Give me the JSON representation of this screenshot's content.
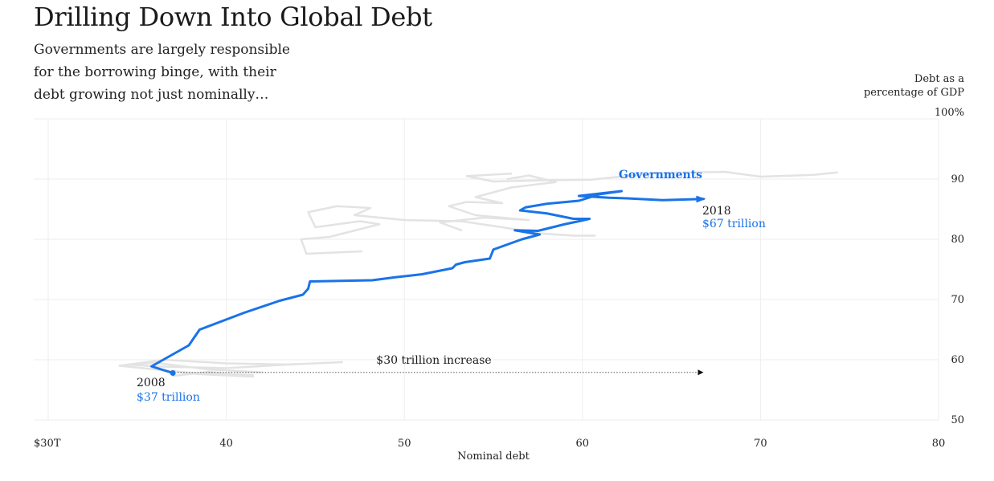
{
  "title": "Drilling Down Into Global Debt",
  "subtitle": "Governments are largely responsible for the borrowing binge, with their debt growing not just nominally…",
  "chart_data": {
    "type": "line",
    "xlabel": "Nominal debt",
    "ylabel": "Debt as a percentage of GDP",
    "xlim": [
      30,
      80
    ],
    "ylim": [
      50,
      100
    ],
    "x_ticks": [
      30,
      40,
      50,
      60,
      70,
      80
    ],
    "x_tick_labels": [
      "$30T",
      "40",
      "50",
      "60",
      "70",
      "80"
    ],
    "y_ticks": [
      50,
      60,
      70,
      80,
      90,
      100
    ],
    "y_tick_labels": [
      "50",
      "60",
      "70",
      "80",
      "90",
      "100%"
    ],
    "grid": true,
    "series": [
      {
        "name": "Governments",
        "color": "#1a73e8",
        "x": [
          37.0,
          35.8,
          37.9,
          38.5,
          41.0,
          43.0,
          44.3,
          44.6,
          44.7,
          48.2,
          49.5,
          51.0,
          52.7,
          52.9,
          53.4,
          54.8,
          55.0,
          56.6,
          57.6,
          56.8,
          56.2,
          57.5,
          59.0,
          59.8,
          60.4,
          59.5,
          58.0,
          56.5,
          56.8,
          58.0,
          59.8,
          61.0,
          62.2,
          59.8,
          61.5,
          62.5,
          64.5,
          66.8
        ],
        "y": [
          57.8,
          58.9,
          62.4,
          65.0,
          67.8,
          69.8,
          70.8,
          71.8,
          73.0,
          73.2,
          73.7,
          74.2,
          75.2,
          75.8,
          76.2,
          76.8,
          78.3,
          80.0,
          80.8,
          81.2,
          81.5,
          81.4,
          82.5,
          83.0,
          83.4,
          83.4,
          84.3,
          84.8,
          85.3,
          85.9,
          86.4,
          87.5,
          88.0,
          87.2,
          86.9,
          86.8,
          86.5,
          86.7
        ]
      }
    ],
    "background_series_color": "#e3e3e3",
    "background_series": [
      {
        "x": [
          41.5,
          38.0,
          34.0,
          36.5,
          40.0,
          43.5,
          46.5
        ],
        "y": [
          57.5,
          57.8,
          59.0,
          60.0,
          59.4,
          59.2,
          59.6
        ]
      },
      {
        "x": [
          42.0,
          39.0,
          36.0,
          34.5,
          36.0,
          40.0,
          44.0
        ],
        "y": [
          57.9,
          58.4,
          59.5,
          59.2,
          58.9,
          58.6,
          59.3
        ]
      },
      {
        "x": [
          37.0,
          39.0,
          41.5,
          38.5,
          36.5
        ],
        "y": [
          57.3,
          58.0,
          57.2,
          57.6,
          58.2
        ]
      },
      {
        "x": [
          47.6,
          44.5,
          44.2,
          45.8,
          48.6,
          47.5,
          45.0,
          44.6,
          46.2,
          48.1,
          47.2,
          50.0,
          53.2,
          55.5,
          57.5,
          59.5,
          60.7
        ],
        "y": [
          78.0,
          77.6,
          80.0,
          80.4,
          82.5,
          83.0,
          82.0,
          84.5,
          85.5,
          85.2,
          84.0,
          83.2,
          83.0,
          82.0,
          81.0,
          80.6,
          80.6
        ]
      },
      {
        "x": [
          53.2,
          52.0,
          54.5,
          57.0,
          54.0,
          52.5,
          53.5,
          55.5,
          54.0,
          56.0,
          58.5,
          57.0,
          55.8
        ],
        "y": [
          81.5,
          82.8,
          83.6,
          83.2,
          84.0,
          85.5,
          86.2,
          86.0,
          87.0,
          88.6,
          89.5,
          90.6,
          90.0
        ]
      },
      {
        "x": [
          56.0,
          53.5,
          55.0,
          58.0,
          60.5,
          64.0,
          68.0,
          70.0,
          73.0,
          74.3
        ],
        "y": [
          90.9,
          90.5,
          89.6,
          89.8,
          89.9,
          91.0,
          91.2,
          90.4,
          90.7,
          91.1
        ]
      }
    ],
    "annotations": {
      "series_label": "Governments",
      "end_year": "2018",
      "end_value": "$67 trillion",
      "start_year": "2008",
      "start_value": "$37 trillion",
      "increase_label": "$30 trillion increase",
      "increase_y": 57.9
    }
  }
}
